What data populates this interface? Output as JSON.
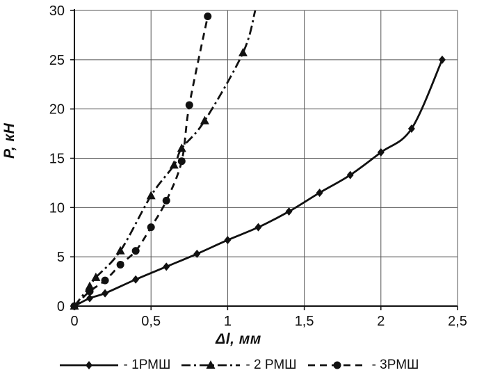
{
  "chart_data": {
    "type": "line",
    "title": "",
    "xlabel": "Δl, мм",
    "ylabel": "P, кН",
    "xlim": [
      0,
      2.5
    ],
    "ylim": [
      0,
      30
    ],
    "xticks": [
      0,
      0.5,
      1,
      1.5,
      2,
      2.5
    ],
    "xtick_labels": [
      "0",
      "0,5",
      "1",
      "1,5",
      "2",
      "2,5"
    ],
    "yticks": [
      0,
      5,
      10,
      15,
      20,
      25,
      30
    ],
    "ytick_labels": [
      "0",
      "5",
      "10",
      "15",
      "20",
      "25",
      "30"
    ],
    "grid": true,
    "legend_position": "bottom",
    "line_color": "#111111",
    "grid_color": "#555555",
    "series": [
      {
        "name": "1РМШ",
        "legend_label": "- 1РМШ",
        "marker": "diamond",
        "line_style": "solid",
        "x": [
          0,
          0.1,
          0.2,
          0.4,
          0.6,
          0.8,
          1.0,
          1.2,
          1.4,
          1.6,
          1.8,
          2.0,
          2.2,
          2.4
        ],
        "y": [
          0,
          0.8,
          1.3,
          2.7,
          4.0,
          5.3,
          6.7,
          8.0,
          9.6,
          11.5,
          13.3,
          15.6,
          18.0,
          25.0
        ]
      },
      {
        "name": "2 РМШ",
        "legend_label": "- 2 РМШ",
        "marker": "triangle",
        "line_style": "dashdot",
        "x": [
          0,
          0.1,
          0.14,
          0.3,
          0.5,
          0.65,
          0.7,
          0.85,
          1.1
        ],
        "y": [
          0,
          2.0,
          2.9,
          5.6,
          11.2,
          14.3,
          16.0,
          18.8,
          25.7
        ],
        "line_end": [
          1.18,
          30
        ]
      },
      {
        "name": "3РМШ",
        "legend_label": "- 3РМШ",
        "marker": "circle",
        "line_style": "dashed",
        "x": [
          0,
          0.1,
          0.2,
          0.3,
          0.4,
          0.5,
          0.6,
          0.7,
          0.75,
          0.87
        ],
        "y": [
          0,
          1.5,
          2.6,
          4.2,
          5.6,
          8.0,
          10.7,
          14.7,
          20.4,
          29.4
        ]
      }
    ]
  }
}
